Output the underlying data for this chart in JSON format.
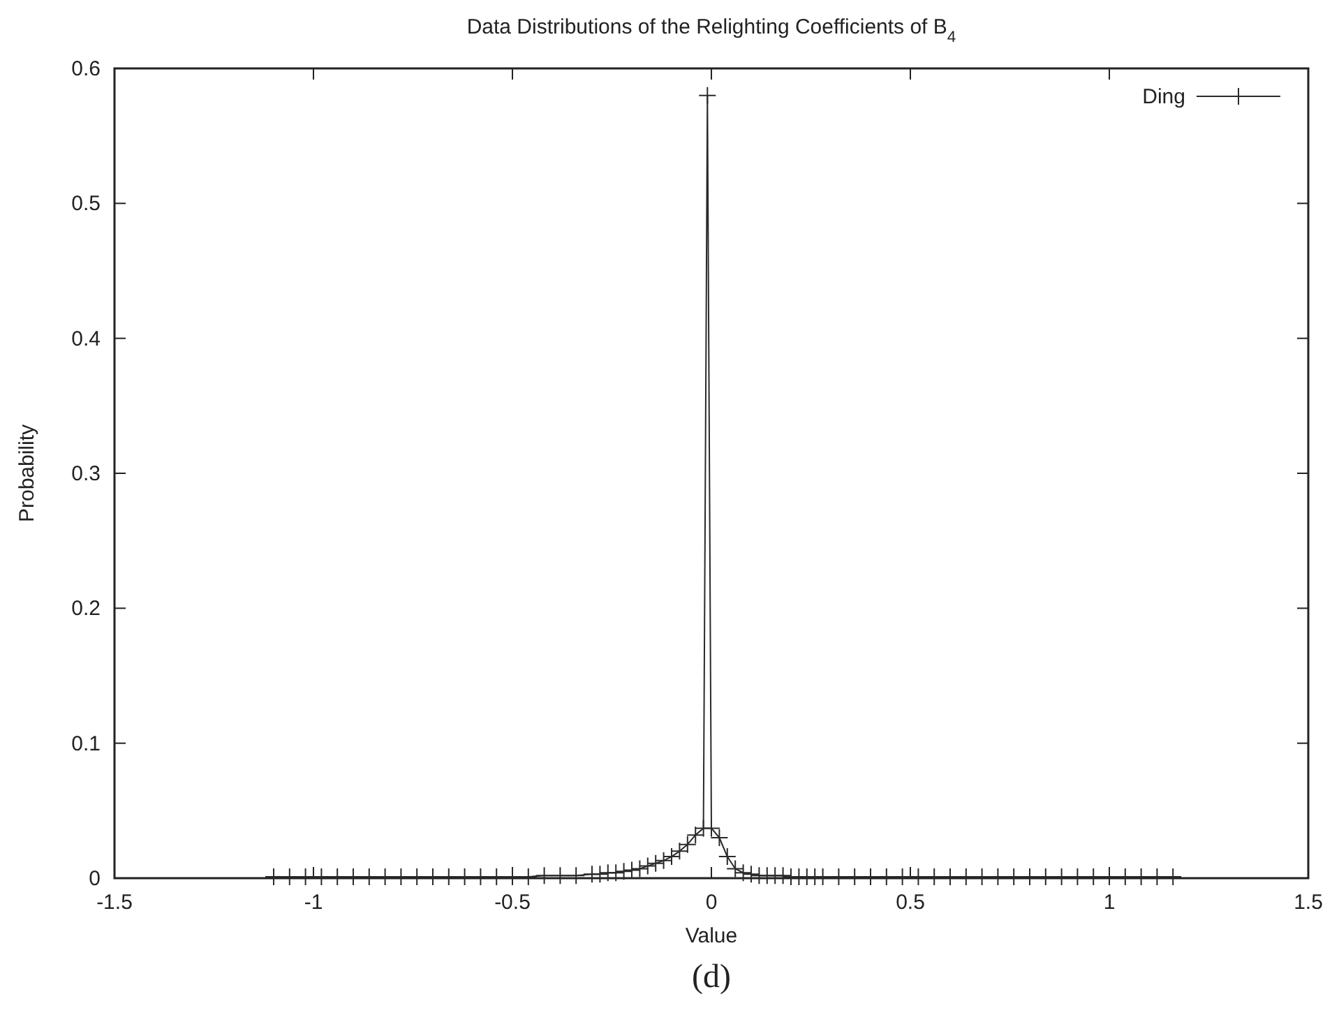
{
  "chart_data": {
    "type": "line",
    "title": "Data Distributions of the Relighting Coefficients of B$_{4}$",
    "xlabel": "Value",
    "ylabel": "Probability",
    "annotations": [
      "(d)"
    ],
    "xlim": [
      -1.5,
      1.5
    ],
    "xticks": [
      -1.5,
      -1,
      -0.5,
      0,
      0.5,
      1,
      1.5
    ],
    "ylim": [
      0,
      0.6
    ],
    "yticks": [
      0,
      0.1,
      0.2,
      0.3,
      0.4,
      0.5,
      0.6
    ],
    "grid": false,
    "legend": "top right",
    "marker": "cross",
    "line_style": "solid",
    "series": [
      {
        "name": "Ding",
        "color": "#2a2a2a",
        "x": [
          -1.1,
          -1.06,
          -1.02,
          -0.98,
          -0.94,
          -0.9,
          -0.86,
          -0.82,
          -0.78,
          -0.74,
          -0.7,
          -0.66,
          -0.62,
          -0.58,
          -0.54,
          -0.5,
          -0.46,
          -0.42,
          -0.38,
          -0.34,
          -0.3,
          -0.28,
          -0.26,
          -0.24,
          -0.22,
          -0.2,
          -0.18,
          -0.16,
          -0.14,
          -0.12,
          -0.1,
          -0.08,
          -0.06,
          -0.04,
          -0.02,
          -0.01,
          0.0,
          0.02,
          0.04,
          0.06,
          0.08,
          0.1,
          0.12,
          0.14,
          0.16,
          0.18,
          0.2,
          0.22,
          0.24,
          0.26,
          0.28,
          0.32,
          0.36,
          0.4,
          0.44,
          0.48,
          0.52,
          0.56,
          0.6,
          0.64,
          0.68,
          0.72,
          0.76,
          0.8,
          0.84,
          0.88,
          0.92,
          0.96,
          1.0,
          1.04,
          1.08,
          1.12,
          1.16
        ],
        "values": [
          0.001,
          0.001,
          0.001,
          0.001,
          0.001,
          0.001,
          0.001,
          0.001,
          0.001,
          0.001,
          0.001,
          0.001,
          0.001,
          0.001,
          0.001,
          0.001,
          0.001,
          0.002,
          0.002,
          0.002,
          0.003,
          0.003,
          0.004,
          0.004,
          0.005,
          0.006,
          0.007,
          0.009,
          0.011,
          0.013,
          0.016,
          0.02,
          0.025,
          0.032,
          0.037,
          0.58,
          0.037,
          0.03,
          0.016,
          0.007,
          0.004,
          0.003,
          0.002,
          0.002,
          0.002,
          0.002,
          0.001,
          0.001,
          0.001,
          0.001,
          0.001,
          0.001,
          0.001,
          0.001,
          0.001,
          0.001,
          0.001,
          0.001,
          0.001,
          0.001,
          0.001,
          0.001,
          0.001,
          0.001,
          0.001,
          0.001,
          0.001,
          0.001,
          0.001,
          0.001,
          0.001,
          0.001,
          0.001
        ]
      }
    ]
  }
}
